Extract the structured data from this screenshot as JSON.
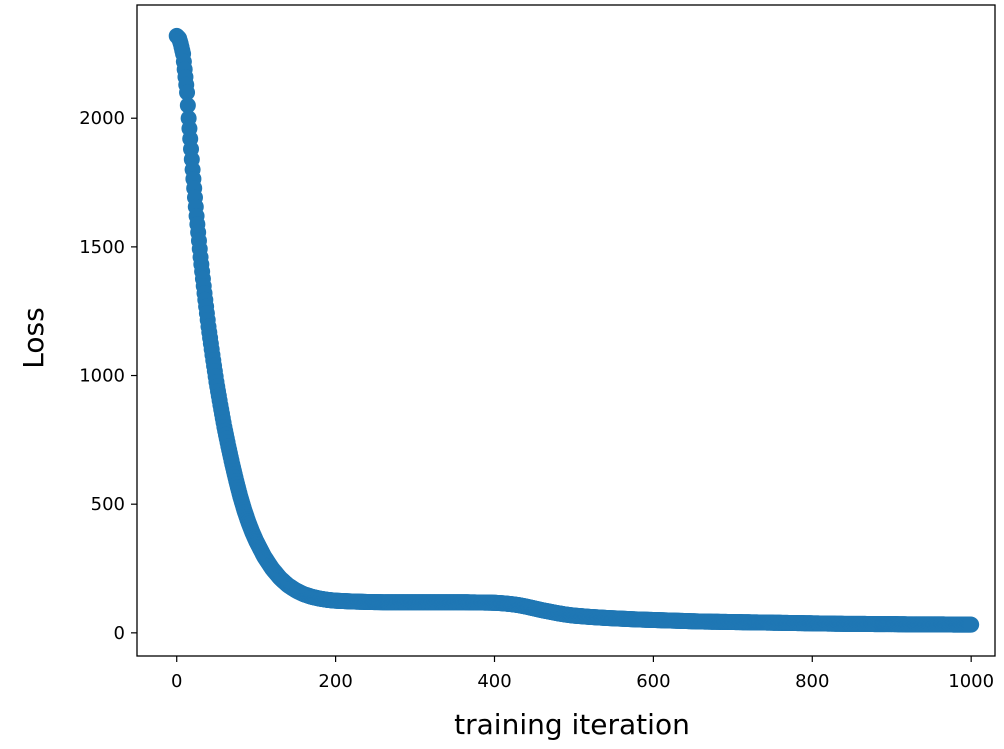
{
  "chart_data": {
    "type": "scatter",
    "title": "",
    "xlabel": "training iteration",
    "ylabel": "Loss",
    "xlim": [
      -50,
      1030
    ],
    "ylim": [
      -90,
      2440
    ],
    "xticks": [
      0,
      200,
      400,
      600,
      800,
      1000
    ],
    "yticks": [
      0,
      500,
      1000,
      1500,
      2000
    ],
    "grid": false,
    "legend": "none",
    "marker_color": "#1f77b4",
    "series": [
      {
        "x": [
          0,
          3,
          5,
          8,
          10,
          13,
          15,
          20,
          25,
          30,
          35,
          40,
          45,
          50,
          55,
          60,
          65,
          70,
          75,
          80,
          85,
          90,
          95,
          100,
          110,
          120,
          130,
          140,
          150,
          160,
          170,
          180,
          190,
          200,
          220,
          240,
          260,
          280,
          300,
          320,
          340,
          360,
          380,
          400,
          410,
          420,
          430,
          440,
          450,
          460,
          470,
          480,
          490,
          500,
          520,
          540,
          560,
          580,
          600,
          620,
          640,
          660,
          680,
          700,
          720,
          740,
          760,
          780,
          800,
          820,
          840,
          860,
          880,
          900,
          920,
          940,
          960,
          980,
          1000
        ],
        "y": [
          2320,
          2310,
          2290,
          2250,
          2190,
          2100,
          2000,
          1800,
          1620,
          1460,
          1320,
          1190,
          1080,
          975,
          885,
          800,
          725,
          655,
          590,
          530,
          478,
          432,
          392,
          357,
          297,
          250,
          213,
          185,
          165,
          150,
          140,
          133,
          128,
          125,
          122,
          120,
          119,
          119,
          119,
          119,
          119,
          119,
          118,
          117,
          115,
          112,
          108,
          102,
          95,
          88,
          82,
          76,
          71,
          67,
          62,
          58,
          55,
          52,
          50,
          48,
          46,
          44,
          43,
          42,
          41,
          40,
          39,
          38,
          37,
          36,
          35,
          35,
          34,
          34,
          33,
          33,
          33,
          32,
          32
        ]
      }
    ]
  }
}
